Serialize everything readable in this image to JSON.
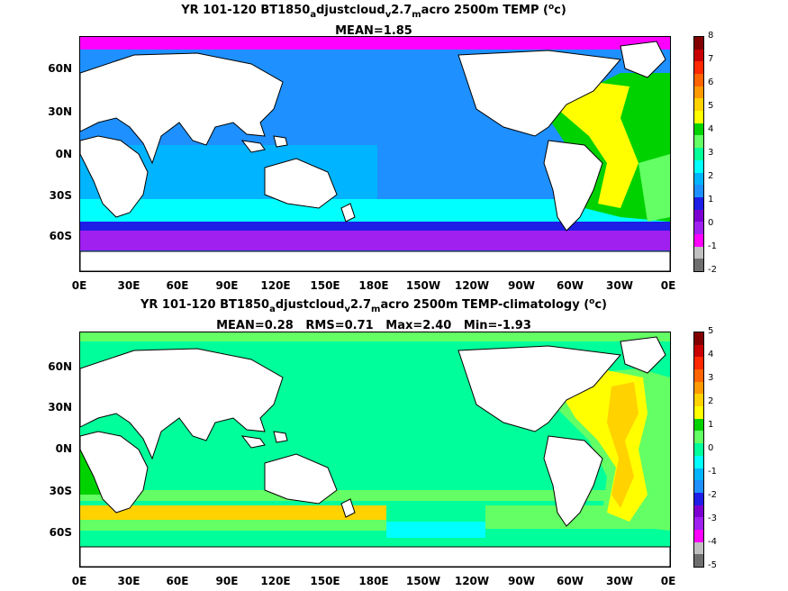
{
  "panels": [
    {
      "title_parts": {
        "prefix": "YR 101-120 BT1850",
        "sub1": "a",
        "mid1": "djustcloud",
        "sub2": "v",
        "mid2": "2.7",
        "sub3": "m",
        "suffix_pre": "acro 2500m TEMP (",
        "sup": "o",
        "suffix_post": "c)"
      },
      "stats_line": "MEAN=1.85",
      "colorbar_labels": [
        "8",
        "7",
        "6",
        "5",
        "4",
        "3",
        "2",
        "1",
        "0",
        "-1",
        "-2"
      ]
    },
    {
      "title_parts": {
        "prefix": "YR 101-120 BT1850",
        "sub1": "a",
        "mid1": "djustcloud",
        "sub2": "v",
        "mid2": "2.7",
        "sub3": "m",
        "suffix_pre": "acro 2500m TEMP-climatology (",
        "sup": "o",
        "suffix_post": "c)"
      },
      "stats_line": "MEAN=0.28   RMS=0.71   Max=2.40   Min=-1.93",
      "colorbar_labels": [
        "5",
        "4",
        "3",
        "2",
        "1",
        "0",
        "-1",
        "-2",
        "-3",
        "-4",
        "-5"
      ]
    }
  ],
  "lat_labels": [
    "60N",
    "30N",
    "0N",
    "30S",
    "60S"
  ],
  "lon_labels": [
    "0E",
    "30E",
    "60E",
    "90E",
    "120E",
    "150E",
    "180E",
    "150W",
    "120W",
    "90W",
    "60W",
    "30W",
    "0E"
  ],
  "colors": {
    "palette": [
      "#6e6e6e",
      "#c0c0c0",
      "#ff00ff",
      "#a020f0",
      "#7c00d0",
      "#1e1ee6",
      "#1e90ff",
      "#00b4ff",
      "#00ffff",
      "#00ff9a",
      "#64ff64",
      "#00d200",
      "#ffff00",
      "#ffd200",
      "#ff9900",
      "#ff6400",
      "#ff2800",
      "#c80000",
      "#820000"
    ],
    "land": "#ffffff"
  }
}
